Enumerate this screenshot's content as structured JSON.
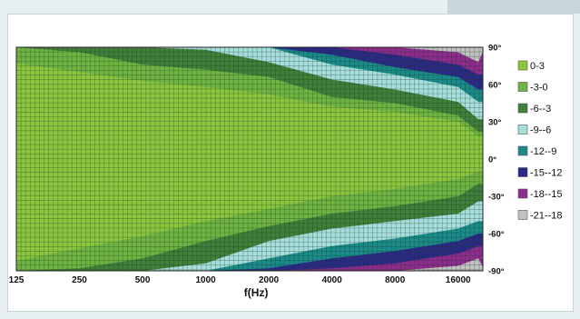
{
  "chart_data": {
    "type": "heatmap",
    "title": "",
    "xlabel": "f(Hz)",
    "ylabel": "",
    "x_scale": "log",
    "x_ticks": [
      "125",
      "250",
      "500",
      "1000",
      "2000",
      "4000",
      "8000",
      "16000"
    ],
    "y_ticks": [
      "90°",
      "60°",
      "30°",
      "0°",
      "-30°",
      "-60°",
      "-90°"
    ],
    "grid": true,
    "legend_position": "right",
    "legend": [
      {
        "label": "0-3",
        "color": "#8cc63f"
      },
      {
        "label": "-3-0",
        "color": "#6fb442"
      },
      {
        "label": "-6--3",
        "color": "#3f7f3a"
      },
      {
        "label": "-9--6",
        "color": "#a6dede"
      },
      {
        "label": "-12--9",
        "color": "#1a8a8a"
      },
      {
        "label": "-15--12",
        "color": "#2a2a86"
      },
      {
        "label": "-18--15",
        "color": "#8e2b8f"
      },
      {
        "label": "-21--18",
        "color": "#c2c2c2"
      }
    ],
    "contour_boundaries_upper": {
      "frequencies_hz": [
        125,
        250,
        500,
        1000,
        2000,
        4000,
        8000,
        16000,
        20000
      ],
      "edge_-3_deg": [
        77,
        70,
        63,
        58,
        52,
        42,
        38,
        30,
        18
      ],
      "edge_-6_deg": [
        90,
        86,
        76,
        72,
        66,
        50,
        45,
        35,
        22
      ],
      "edge_-9_deg": [
        90,
        90,
        90,
        88,
        78,
        64,
        56,
        46,
        32
      ],
      "edge_-12_deg": [
        90,
        90,
        90,
        90,
        90,
        76,
        68,
        58,
        46
      ],
      "edge_-15_deg": [
        90,
        90,
        90,
        90,
        90,
        84,
        74,
        66,
        56
      ],
      "edge_-18_deg": [
        90,
        90,
        90,
        90,
        90,
        90,
        84,
        76,
        68
      ]
    },
    "contour_boundaries_lower": {
      "frequencies_hz": [
        125,
        250,
        500,
        1000,
        2000,
        4000,
        8000,
        16000,
        20000
      ],
      "edge_-3_deg": [
        -82,
        -72,
        -62,
        -50,
        -40,
        -30,
        -24,
        -16,
        -10
      ],
      "edge_-6_deg": [
        -90,
        -88,
        -80,
        -66,
        -54,
        -44,
        -38,
        -30,
        -20
      ],
      "edge_-9_deg": [
        -90,
        -90,
        -90,
        -84,
        -66,
        -56,
        -50,
        -44,
        -34
      ],
      "edge_-12_deg": [
        -90,
        -90,
        -90,
        -90,
        -80,
        -70,
        -64,
        -56,
        -50
      ],
      "edge_-15_deg": [
        -90,
        -90,
        -90,
        -90,
        -88,
        -80,
        -74,
        -66,
        -60
      ],
      "edge_-18_deg": [
        -90,
        -90,
        -90,
        -90,
        -90,
        -88,
        -84,
        -76,
        -70
      ]
    }
  }
}
